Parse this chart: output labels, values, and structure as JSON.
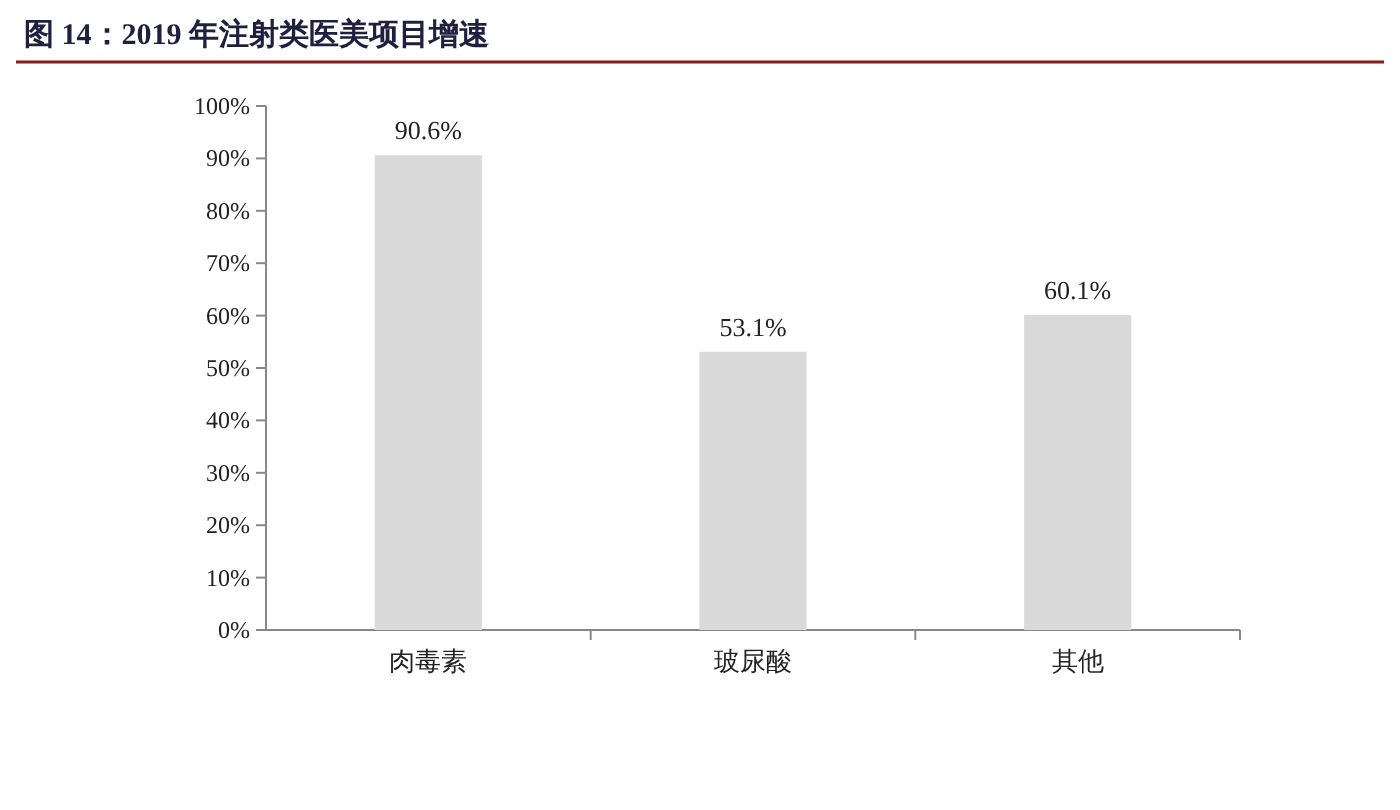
{
  "chart_data": {
    "type": "bar",
    "title": "图 14：2019 年注射类医美项目增速",
    "categories": [
      "肉毒素",
      "玻尿酸",
      "其他"
    ],
    "values": [
      90.6,
      53.1,
      60.1
    ],
    "value_labels": [
      "90.6%",
      "53.1%",
      "60.1%"
    ],
    "color": "#d9d9d9",
    "ylim": [
      0,
      100
    ],
    "yticks": [
      {
        "value": 0,
        "label": "0%"
      },
      {
        "value": 10,
        "label": "10%"
      },
      {
        "value": 20,
        "label": "20%"
      },
      {
        "value": 30,
        "label": "30%"
      },
      {
        "value": 40,
        "label": "40%"
      },
      {
        "value": 50,
        "label": "50%"
      },
      {
        "value": 60,
        "label": "60%"
      },
      {
        "value": 70,
        "label": "70%"
      },
      {
        "value": 80,
        "label": "80%"
      },
      {
        "value": 90,
        "label": "90%"
      },
      {
        "value": 100,
        "label": "100%"
      }
    ]
  }
}
